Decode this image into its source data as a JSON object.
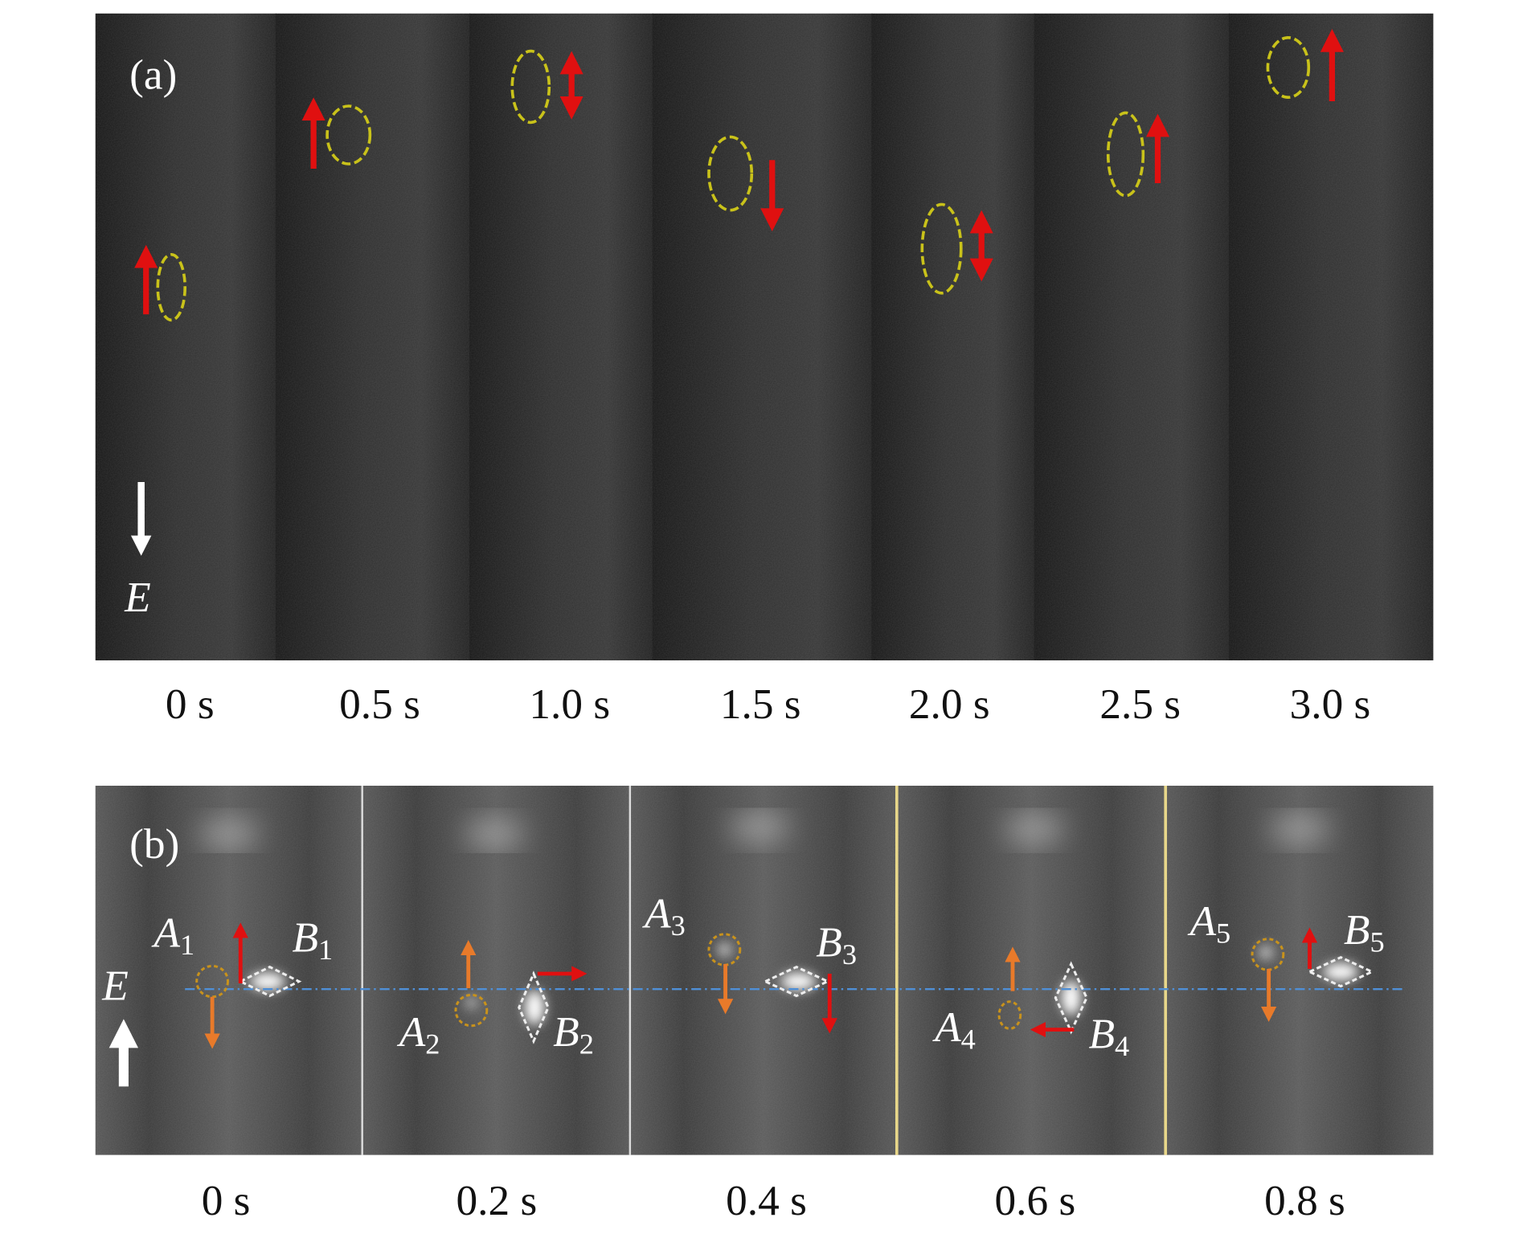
{
  "panel_a": {
    "label": "(a)",
    "field_label": "E",
    "frames": [
      "0 s",
      "0.5 s",
      "1.0 s",
      "1.5 s",
      "2.0 s",
      "2.5 s",
      "3.0 s"
    ]
  },
  "panel_b": {
    "label": "(b)",
    "field_label": "E",
    "frames": [
      "0 s",
      "0.2 s",
      "0.4 s",
      "0.6 s",
      "0.8 s"
    ],
    "particles": [
      {
        "a": "A",
        "a_sub": "1",
        "b": "B",
        "b_sub": "1"
      },
      {
        "a": "A",
        "a_sub": "2",
        "b": "B",
        "b_sub": "2"
      },
      {
        "a": "A",
        "a_sub": "3",
        "b": "B",
        "b_sub": "3"
      },
      {
        "a": "A",
        "a_sub": "4",
        "b": "B",
        "b_sub": "4"
      },
      {
        "a": "A",
        "a_sub": "5",
        "b": "B",
        "b_sub": "5"
      }
    ]
  }
}
